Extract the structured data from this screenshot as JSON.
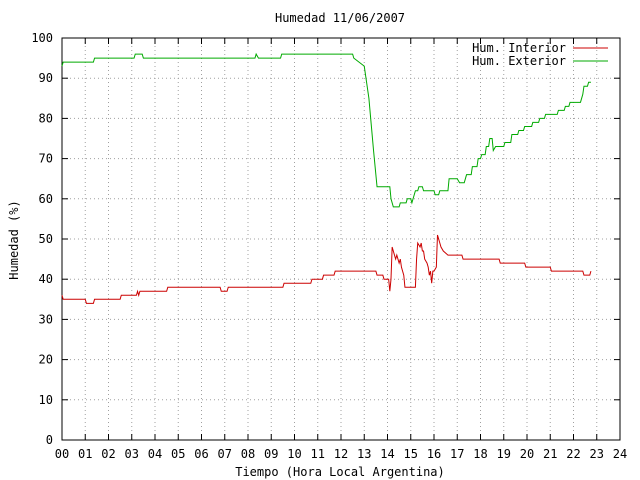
{
  "chart_data": {
    "type": "line",
    "title": "Humedad 11/06/2007",
    "xlabel": "Tiempo (Hora Local Argentina)",
    "ylabel": "Humedad (%)",
    "xlim": [
      0,
      24
    ],
    "ylim": [
      0,
      100
    ],
    "xticks": [
      0,
      1,
      2,
      3,
      4,
      5,
      6,
      7,
      8,
      9,
      10,
      11,
      12,
      13,
      14,
      15,
      16,
      17,
      18,
      19,
      20,
      21,
      22,
      23,
      24
    ],
    "xtick_labels": [
      "00",
      "01",
      "02",
      "03",
      "04",
      "05",
      "06",
      "07",
      "08",
      "09",
      "10",
      "11",
      "12",
      "13",
      "14",
      "15",
      "16",
      "17",
      "18",
      "19",
      "20",
      "21",
      "22",
      "23",
      "24"
    ],
    "yticks": [
      0,
      10,
      20,
      30,
      40,
      50,
      60,
      70,
      80,
      90,
      100
    ],
    "grid": true,
    "legend_position": "top-right",
    "series": [
      {
        "name": "Hum. Interior",
        "color": "#cc0000",
        "points": [
          [
            0,
            36
          ],
          [
            0.05,
            35
          ],
          [
            1,
            35
          ],
          [
            1.05,
            34
          ],
          [
            1.35,
            34
          ],
          [
            1.4,
            35
          ],
          [
            2.5,
            35
          ],
          [
            2.55,
            36
          ],
          [
            3.2,
            36
          ],
          [
            3.25,
            37
          ],
          [
            3.3,
            36
          ],
          [
            3.35,
            37
          ],
          [
            4.5,
            37
          ],
          [
            4.55,
            38
          ],
          [
            6.8,
            38
          ],
          [
            6.85,
            37
          ],
          [
            7.1,
            37
          ],
          [
            7.15,
            38
          ],
          [
            9.5,
            38
          ],
          [
            9.55,
            39
          ],
          [
            10.7,
            39
          ],
          [
            10.75,
            40
          ],
          [
            11.2,
            40
          ],
          [
            11.25,
            41
          ],
          [
            11.7,
            41
          ],
          [
            11.75,
            42
          ],
          [
            13.5,
            42
          ],
          [
            13.55,
            41
          ],
          [
            13.8,
            41
          ],
          [
            13.85,
            40
          ],
          [
            14.05,
            40
          ],
          [
            14.1,
            37
          ],
          [
            14.15,
            40
          ],
          [
            14.2,
            48
          ],
          [
            14.35,
            45
          ],
          [
            14.4,
            46
          ],
          [
            14.5,
            44
          ],
          [
            14.55,
            45
          ],
          [
            14.6,
            43
          ],
          [
            14.7,
            41
          ],
          [
            14.75,
            38
          ],
          [
            15.2,
            38
          ],
          [
            15.25,
            45
          ],
          [
            15.3,
            49
          ],
          [
            15.4,
            48
          ],
          [
            15.45,
            49
          ],
          [
            15.5,
            47
          ],
          [
            15.55,
            47
          ],
          [
            15.6,
            45
          ],
          [
            15.7,
            44
          ],
          [
            15.75,
            43
          ],
          [
            15.8,
            41
          ],
          [
            15.85,
            42
          ],
          [
            15.9,
            39
          ],
          [
            15.95,
            42
          ],
          [
            16.0,
            42
          ],
          [
            16.1,
            43
          ],
          [
            16.15,
            51
          ],
          [
            16.3,
            48
          ],
          [
            16.4,
            47
          ],
          [
            16.6,
            46
          ],
          [
            16.8,
            46
          ],
          [
            17.2,
            46
          ],
          [
            17.25,
            45
          ],
          [
            18.8,
            45
          ],
          [
            18.85,
            44
          ],
          [
            19.9,
            44
          ],
          [
            19.95,
            43
          ],
          [
            21.0,
            43
          ],
          [
            21.05,
            42
          ],
          [
            22.4,
            42
          ],
          [
            22.45,
            41
          ],
          [
            22.7,
            41
          ],
          [
            22.75,
            42
          ]
        ]
      },
      {
        "name": "Hum. Exterior",
        "color": "#00aa00",
        "points": [
          [
            0,
            93
          ],
          [
            0.05,
            94
          ],
          [
            1.35,
            94
          ],
          [
            1.4,
            95
          ],
          [
            3.1,
            95
          ],
          [
            3.15,
            96
          ],
          [
            3.45,
            96
          ],
          [
            3.5,
            95
          ],
          [
            8.3,
            95
          ],
          [
            8.35,
            96
          ],
          [
            8.45,
            95
          ],
          [
            9.4,
            95
          ],
          [
            9.45,
            96
          ],
          [
            12.5,
            96
          ],
          [
            12.55,
            95
          ],
          [
            13.0,
            93
          ],
          [
            13.2,
            85
          ],
          [
            13.4,
            72
          ],
          [
            13.55,
            63
          ],
          [
            14.1,
            63
          ],
          [
            14.15,
            60
          ],
          [
            14.25,
            58
          ],
          [
            14.5,
            58
          ],
          [
            14.55,
            59
          ],
          [
            14.8,
            59
          ],
          [
            14.85,
            60
          ],
          [
            15.0,
            60
          ],
          [
            15.05,
            59
          ],
          [
            15.2,
            62
          ],
          [
            15.3,
            62
          ],
          [
            15.35,
            63
          ],
          [
            15.5,
            63
          ],
          [
            15.55,
            62
          ],
          [
            16.0,
            62
          ],
          [
            16.05,
            61
          ],
          [
            16.2,
            61
          ],
          [
            16.25,
            62
          ],
          [
            16.6,
            62
          ],
          [
            16.65,
            65
          ],
          [
            17.0,
            65
          ],
          [
            17.1,
            64
          ],
          [
            17.3,
            64
          ],
          [
            17.4,
            66
          ],
          [
            17.6,
            66
          ],
          [
            17.65,
            68
          ],
          [
            17.85,
            68
          ],
          [
            17.9,
            70
          ],
          [
            18.0,
            70
          ],
          [
            18.05,
            71
          ],
          [
            18.2,
            71
          ],
          [
            18.25,
            73
          ],
          [
            18.35,
            73
          ],
          [
            18.4,
            75
          ],
          [
            18.5,
            75
          ],
          [
            18.55,
            72
          ],
          [
            18.65,
            73
          ],
          [
            19.0,
            73
          ],
          [
            19.05,
            74
          ],
          [
            19.3,
            74
          ],
          [
            19.35,
            76
          ],
          [
            19.6,
            76
          ],
          [
            19.65,
            77
          ],
          [
            19.85,
            77
          ],
          [
            19.9,
            78
          ],
          [
            20.2,
            78
          ],
          [
            20.25,
            79
          ],
          [
            20.5,
            79
          ],
          [
            20.55,
            80
          ],
          [
            20.75,
            80
          ],
          [
            20.8,
            81
          ],
          [
            21.3,
            81
          ],
          [
            21.35,
            82
          ],
          [
            21.6,
            82
          ],
          [
            21.65,
            83
          ],
          [
            21.8,
            83
          ],
          [
            21.85,
            84
          ],
          [
            22.3,
            84
          ],
          [
            22.35,
            85
          ],
          [
            22.4,
            86
          ],
          [
            22.45,
            88
          ],
          [
            22.6,
            88
          ],
          [
            22.65,
            89
          ],
          [
            22.75,
            89
          ]
        ]
      }
    ]
  }
}
